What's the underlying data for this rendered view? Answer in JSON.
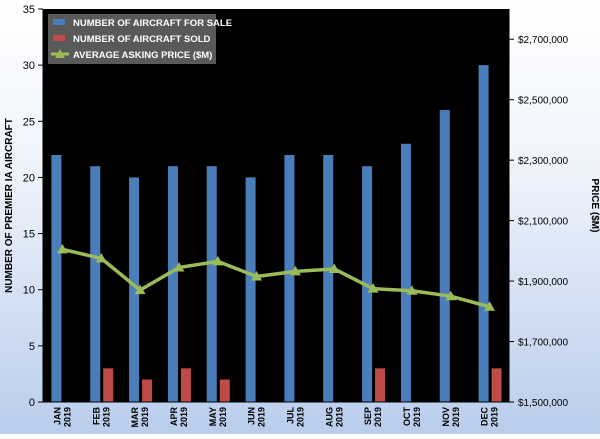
{
  "chart_data": {
    "type": "bar",
    "categories": [
      [
        "JAN",
        "2019"
      ],
      [
        "FEB",
        "2019"
      ],
      [
        "MAR",
        "2019"
      ],
      [
        "APR",
        "2019"
      ],
      [
        "MAY",
        "2019"
      ],
      [
        "JUN",
        "2019"
      ],
      [
        "JUL",
        "2019"
      ],
      [
        "AUG",
        "2019"
      ],
      [
        "SEP",
        "2019"
      ],
      [
        "OCT",
        "2019"
      ],
      [
        "NOV",
        "2019"
      ],
      [
        "DEC",
        "2019"
      ]
    ],
    "series": [
      {
        "name": "NUMBER OF AIRCRAFT FOR SALE",
        "type": "bar",
        "axis": "left",
        "color": "#4a7ebb",
        "values": [
          22,
          21,
          20,
          21,
          21,
          20,
          22,
          22,
          21,
          23,
          26,
          30
        ]
      },
      {
        "name": "NUMBER OF AIRCRAFT SOLD",
        "type": "bar",
        "axis": "left",
        "color": "#be4b48",
        "values": [
          0,
          3,
          2,
          3,
          2,
          0,
          0,
          0,
          3,
          0,
          0,
          3
        ]
      },
      {
        "name": "AVERAGE ASKING PRICE ($M)",
        "type": "line",
        "axis": "right",
        "color": "#9bbb59",
        "values": [
          2005000,
          1975000,
          1870000,
          1945000,
          1965000,
          1915000,
          1932000,
          1940000,
          1875000,
          1868000,
          1850000,
          1815000
        ]
      }
    ],
    "ylabel": "NUMBER OF PREMIER IA AIRCRAFT",
    "y2label": "PRICE ($M)",
    "ylim": [
      0,
      35
    ],
    "y2lim": [
      1500000,
      2800000
    ],
    "y_ticks": [
      "0",
      "5",
      "10",
      "15",
      "20",
      "25",
      "30",
      "35"
    ],
    "y2_ticks": [
      "$1,500,000",
      "$1,700,000",
      "$1,900,000",
      "$2,100,000",
      "$2,300,000",
      "$2,500,000",
      "$2,700,000"
    ],
    "y_tick_values": [
      0,
      5,
      10,
      15,
      20,
      25,
      30,
      35
    ],
    "y2_tick_values": [
      1500000,
      1700000,
      1900000,
      2100000,
      2300000,
      2500000,
      2700000
    ],
    "legend_position": "top-left",
    "grid": false,
    "plot_background": "#000000"
  }
}
